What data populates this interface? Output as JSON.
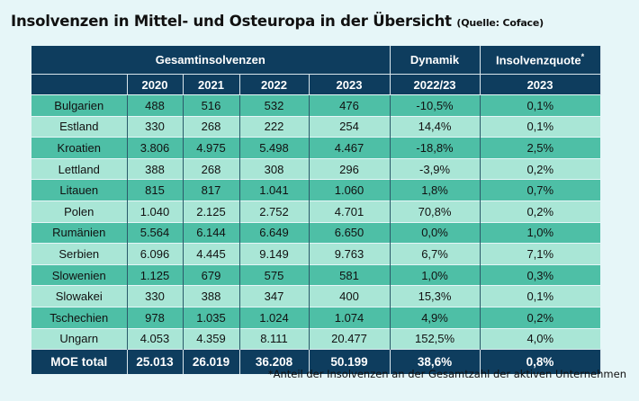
{
  "chart_data": {
    "type": "table",
    "title": "Insolvenzen in Mittel- und Osteuropa in der Übersicht",
    "source": "(Quelle: Coface)",
    "header_groups": {
      "gesamt": "Gesamtinsolvenzen",
      "dynamik": "Dynamik",
      "quote": "Insolvenzquote",
      "quote_mark": "*"
    },
    "columns": [
      "2020",
      "2021",
      "2022",
      "2023",
      "2022/23",
      "2023"
    ],
    "rows": [
      {
        "country": "Bulgarien",
        "cells": [
          "488",
          "516",
          "532",
          "476",
          "-10,5%",
          "0,1%"
        ]
      },
      {
        "country": "Estland",
        "cells": [
          "330",
          "268",
          "222",
          "254",
          "14,4%",
          "0,1%"
        ]
      },
      {
        "country": "Kroatien",
        "cells": [
          "3.806",
          "4.975",
          "5.498",
          "4.467",
          "-18,8%",
          "2,5%"
        ]
      },
      {
        "country": "Lettland",
        "cells": [
          "388",
          "268",
          "308",
          "296",
          "-3,9%",
          "0,2%"
        ]
      },
      {
        "country": "Litauen",
        "cells": [
          "815",
          "817",
          "1.041",
          "1.060",
          "1,8%",
          "0,7%"
        ]
      },
      {
        "country": "Polen",
        "cells": [
          "1.040",
          "2.125",
          "2.752",
          "4.701",
          "70,8%",
          "0,2%"
        ]
      },
      {
        "country": "Rumänien",
        "cells": [
          "5.564",
          "6.144",
          "6.649",
          "6.650",
          "0,0%",
          "1,0%"
        ]
      },
      {
        "country": "Serbien",
        "cells": [
          "6.096",
          "4.445",
          "9.149",
          "9.763",
          "6,7%",
          "7,1%"
        ]
      },
      {
        "country": "Slowenien",
        "cells": [
          "1.125",
          "679",
          "575",
          "581",
          "1,0%",
          "0,3%"
        ]
      },
      {
        "country": "Slowakei",
        "cells": [
          "330",
          "388",
          "347",
          "400",
          "15,3%",
          "0,1%"
        ]
      },
      {
        "country": "Tschechien",
        "cells": [
          "978",
          "1.035",
          "1.024",
          "1.074",
          "4,9%",
          "0,2%"
        ]
      },
      {
        "country": "Ungarn",
        "cells": [
          "4.053",
          "4.359",
          "8.111",
          "20.477",
          "152,5%",
          "4,0%"
        ]
      }
    ],
    "total": {
      "label": "MOE total",
      "cells": [
        "25.013",
        "26.019",
        "36.208",
        "50.199",
        "38,6%",
        "0,8%"
      ]
    },
    "footnote": "*Anteil der Insolvenzen an der Gesamtzahl der aktiven Unternehmen"
  }
}
